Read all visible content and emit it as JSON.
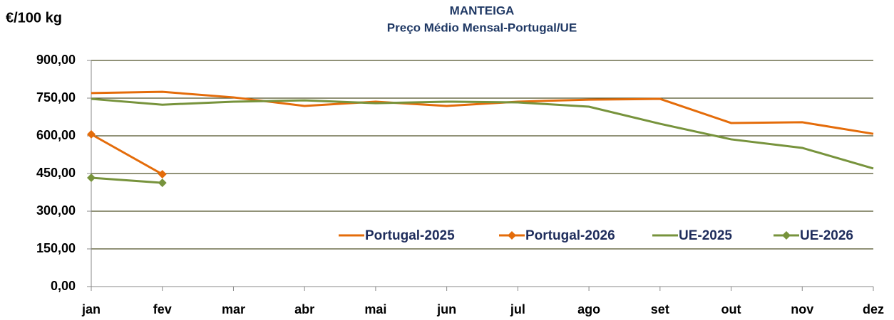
{
  "chart_data": {
    "type": "line",
    "title": "MANTEIGA",
    "subtitle": "Preço Médio Mensal-Portugal/UE",
    "y_label": "€/100 kg",
    "categories": [
      "jan",
      "fev",
      "mar",
      "abr",
      "mai",
      "jun",
      "jul",
      "ago",
      "set",
      "out",
      "nov",
      "dez"
    ],
    "series": [
      {
        "name": "Portugal-2025",
        "color": "#e46c0a",
        "marker": "none",
        "values": [
          770,
          775,
          753,
          719,
          736,
          719,
          736,
          744,
          747,
          651,
          654,
          608
        ]
      },
      {
        "name": "Portugal-2026",
        "color": "#e46c0a",
        "marker": "diamond",
        "values": [
          606,
          447,
          null,
          null,
          null,
          null,
          null,
          null,
          null,
          null,
          null,
          null
        ]
      },
      {
        "name": "UE-2025",
        "color": "#77933c",
        "marker": "none",
        "values": [
          747,
          724,
          736,
          741,
          730,
          736,
          733,
          716,
          648,
          586,
          552,
          470
        ]
      },
      {
        "name": "UE-2026",
        "color": "#77933c",
        "marker": "diamond",
        "values": [
          433,
          413,
          null,
          null,
          null,
          null,
          null,
          null,
          null,
          null,
          null,
          null
        ]
      }
    ],
    "ylim": [
      0,
      900
    ],
    "yticks": [
      {
        "value": 0,
        "label": "0,00"
      },
      {
        "value": 150,
        "label": "150,00"
      },
      {
        "value": 300,
        "label": "300,00"
      },
      {
        "value": 450,
        "label": "450,00"
      },
      {
        "value": 600,
        "label": "600,00"
      },
      {
        "value": 750,
        "label": "750,00"
      },
      {
        "value": 900,
        "label": "900,00"
      }
    ],
    "grid": true,
    "legend": "bottom-right"
  }
}
